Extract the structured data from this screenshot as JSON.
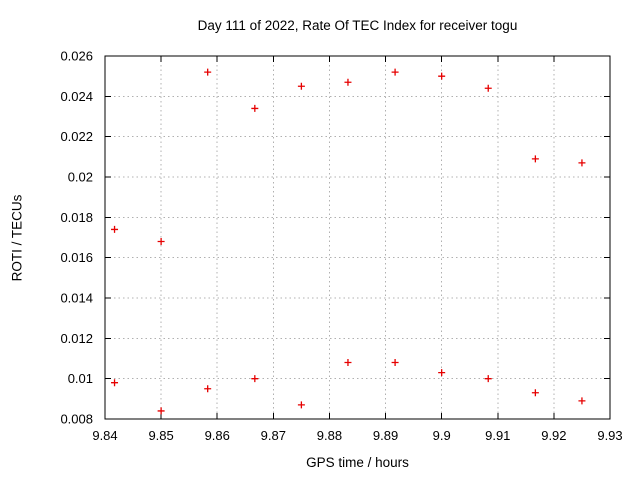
{
  "chart_data": {
    "type": "scatter",
    "title": "Day 111 of 2022, Rate Of TEC Index for receiver togu",
    "xlabel": "GPS time / hours",
    "ylabel": "ROTI / TECUs",
    "xlim": [
      9.84,
      9.93
    ],
    "ylim": [
      0.008,
      0.026
    ],
    "xtick_values": [
      9.84,
      9.85,
      9.86,
      9.87,
      9.88,
      9.89,
      9.9,
      9.91,
      9.92,
      9.93
    ],
    "xtick_labels": [
      "9.84",
      "9.85",
      "9.86",
      "9.87",
      "9.88",
      "9.89",
      "9.9",
      "9.91",
      "9.92",
      "9.93"
    ],
    "ytick_values": [
      0.008,
      0.01,
      0.012,
      0.014,
      0.016,
      0.018,
      0.02,
      0.022,
      0.024,
      0.026
    ],
    "ytick_labels": [
      "0.008",
      "0.01",
      "0.012",
      "0.014",
      "0.016",
      "0.018",
      "0.02",
      "0.022",
      "0.024",
      "0.026"
    ],
    "grid": true,
    "legend_position": "none",
    "marker": {
      "shape": "plus",
      "color": "#e60000",
      "size": 7
    },
    "points": [
      [
        9.8417,
        0.0174
      ],
      [
        9.8417,
        0.0098
      ],
      [
        9.85,
        0.0168
      ],
      [
        9.85,
        0.0084
      ],
      [
        9.8583,
        0.0252
      ],
      [
        9.8583,
        0.0095
      ],
      [
        9.8667,
        0.0234
      ],
      [
        9.8667,
        0.01
      ],
      [
        9.875,
        0.0245
      ],
      [
        9.875,
        0.0087
      ],
      [
        9.8833,
        0.0247
      ],
      [
        9.8833,
        0.0108
      ],
      [
        9.8917,
        0.0252
      ],
      [
        9.8917,
        0.0108
      ],
      [
        9.9,
        0.025
      ],
      [
        9.9,
        0.0103
      ],
      [
        9.9083,
        0.0244
      ],
      [
        9.9083,
        0.01
      ],
      [
        9.9167,
        0.0209
      ],
      [
        9.9167,
        0.0093
      ],
      [
        9.925,
        0.0207
      ],
      [
        9.925,
        0.0089
      ]
    ],
    "colors": {
      "background": "#ffffff",
      "border": "#000000",
      "grid": "#b0b0b0",
      "text": "#000000"
    }
  }
}
